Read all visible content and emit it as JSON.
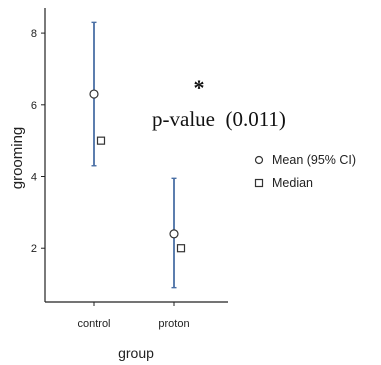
{
  "chart_data": {
    "type": "scatter",
    "xlabel": "group",
    "ylabel": "grooming",
    "categories": [
      "control",
      "proton"
    ],
    "ylim": [
      0.5,
      8.7
    ],
    "yticks": [
      2,
      4,
      6,
      8
    ],
    "grid": false,
    "legend_position": "right",
    "series": [
      {
        "name": "Mean (95% CI)",
        "marker": "circle",
        "values": [
          6.3,
          2.4
        ],
        "ci_low": [
          4.3,
          0.9
        ],
        "ci_high": [
          8.3,
          3.95
        ]
      },
      {
        "name": "Median",
        "marker": "square",
        "values": [
          5.0,
          2.0
        ]
      }
    ],
    "annotation": {
      "star": "*",
      "text": "p-value  (0.011)"
    },
    "colors": {
      "ci_line": "#4a6fa5",
      "axis": "#222222",
      "marker_stroke": "#333333"
    }
  }
}
